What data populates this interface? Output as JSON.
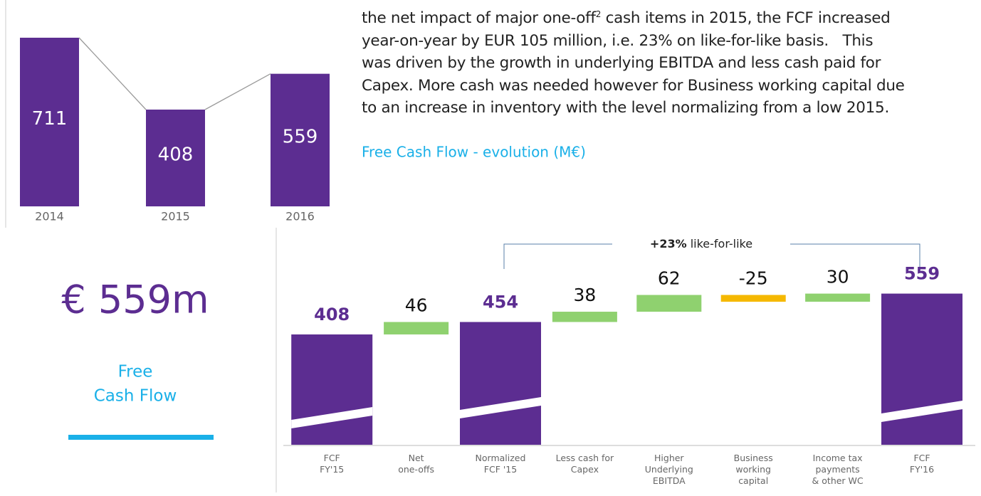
{
  "paragraph": {
    "first_line": [
      "the net impact of major one-off",
      "2",
      " cash items in 2015, the FCF increased"
    ],
    "lines": [
      "year-on-year by EUR 105 million, i.e. 23% on like-for-like basis.   This",
      "was driven by the growth in underlying EBITDA and less cash paid for",
      "Capex. More cash was needed however for Business working capital due",
      "to an increase in inventory with the level normalizing from a low 2015."
    ]
  },
  "kpi": {
    "value": "€ 559m",
    "label": [
      "Free",
      "Cash Flow"
    ]
  },
  "chart_data": [
    {
      "type": "bar",
      "categories": [
        "2014",
        "2015",
        "2016"
      ],
      "values": [
        711,
        408,
        559
      ],
      "color": "#5c2d91",
      "ylim": [
        0,
        720
      ],
      "connector_color": "#9a9a9a"
    },
    {
      "type": "waterfall",
      "title": "Free Cash Flow - evolution (M€)",
      "categories": [
        "FCF\nFY'15",
        "Net\none-offs",
        "Normalized\nFCF '15",
        "Less cash for\nCapex",
        "Higher\nUnderlying\nEBITDA",
        "Business\nworking\ncapital",
        "Income tax\npayments\n& other WC",
        "FCF\nFY'16"
      ],
      "values": [
        408,
        46,
        454,
        38,
        62,
        -25,
        30,
        559
      ],
      "kinds": [
        "total",
        "delta",
        "total",
        "delta",
        "delta",
        "delta",
        "delta",
        "total"
      ],
      "colors": {
        "total": "#5c2d91",
        "increase": "#8fd16f",
        "decrease": "#f5b800"
      },
      "ylim": [
        0,
        600
      ],
      "annotation": {
        "bold": "+23%",
        "text": " like-for-like"
      }
    }
  ]
}
